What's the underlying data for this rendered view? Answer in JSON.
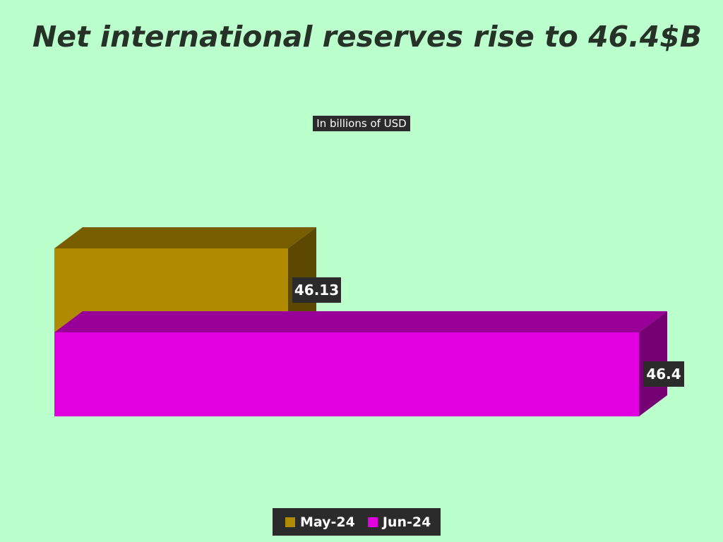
{
  "chart_data": {
    "type": "bar",
    "orientation": "horizontal",
    "title": "Net international reserves rise to 46.4$B",
    "subtitle": "In billions of USD",
    "categories": [
      "May-24",
      "Jun-24"
    ],
    "values": [
      46.13,
      46.4
    ],
    "value_labels": [
      "46.13",
      "46.4"
    ],
    "colors": [
      "#b08a00",
      "#e000e0"
    ],
    "legend_position": "bottom",
    "grid": false,
    "axes_visible": false
  }
}
